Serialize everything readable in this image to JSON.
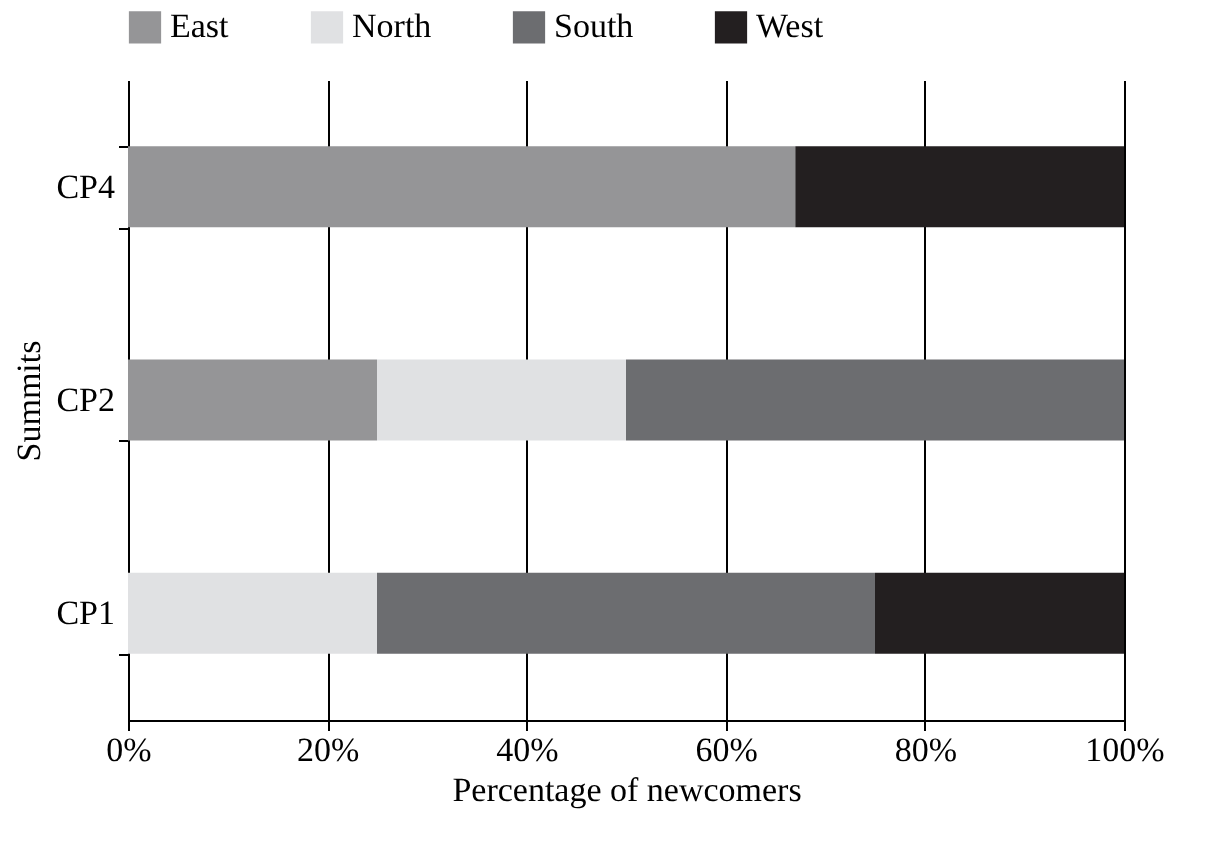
{
  "chart_data": {
    "type": "bar",
    "orientation": "horizontal",
    "stacked": true,
    "xlabel": "Percentage of newcomers",
    "ylabel": "Summits",
    "categories": [
      "CP4",
      "CP2",
      "CP1"
    ],
    "series": [
      {
        "name": "East",
        "color": "#959597",
        "values": [
          67,
          25,
          null
        ]
      },
      {
        "name": "North",
        "color": "#e0e1e3",
        "values": [
          null,
          25,
          25
        ]
      },
      {
        "name": "South",
        "color": "#6c6d70",
        "values": [
          null,
          50,
          50
        ]
      },
      {
        "name": "West",
        "color": "#231f20",
        "values": [
          33,
          null,
          25
        ]
      }
    ],
    "xlim": [
      0,
      100
    ],
    "xticks": [
      {
        "value": 0,
        "label": "0%"
      },
      {
        "value": 20,
        "label": "20%"
      },
      {
        "value": 40,
        "label": "40%"
      },
      {
        "value": 60,
        "label": "60%"
      },
      {
        "value": 80,
        "label": "80%"
      },
      {
        "value": 100,
        "label": "100%"
      }
    ],
    "grid": "x",
    "legend": "top"
  }
}
